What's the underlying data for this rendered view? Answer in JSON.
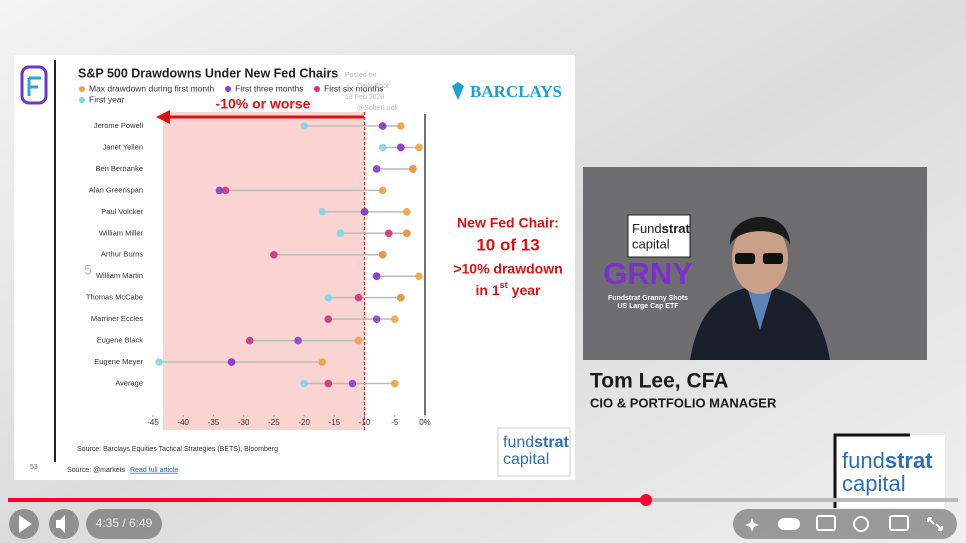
{
  "slide": {
    "source": "Source: Barclays Equities Tactical Strategies (BETS), Bloomberg",
    "footer_source": "Source: @markets",
    "footer_link": "Read full article",
    "page_number": "53",
    "brand": "BARCLAYS",
    "watermark": [
      "Posted on",
      "Daily Shot",
      "18 Feb 2020",
      "@SoberLook"
    ],
    "callout": "-10% or worse",
    "note": {
      "line1": "New Fed Chair:",
      "line2": "10 of 13",
      "line3": ">10% drawdown",
      "line4_a": "in 1",
      "line4_sup": "st",
      "line4_b": "year"
    },
    "logo": {
      "word1": "fund",
      "word2": "strat",
      "word3": "capital"
    }
  },
  "chart_data": {
    "type": "dot",
    "title": "S&P 500 Drawdowns Under New Fed Chairs",
    "categories": [
      "Jerome Powell",
      "Janet Yellen",
      "Ben Bernanke",
      "Alan Greenspan",
      "Paul Volcker",
      "William Miller",
      "Arthur Burns",
      "William Martin",
      "Thomas McCabe",
      "Marriner Eccles",
      "Eugene Black",
      "Eugene Meyer",
      "Average"
    ],
    "series": [
      {
        "name": "Max drawdown during first month",
        "color": "#f0a33a",
        "values": [
          -4,
          -1,
          -2,
          -7,
          -3,
          -3,
          -7,
          -1,
          -4,
          -5,
          -11,
          -17,
          -5
        ]
      },
      {
        "name": "First three months",
        "color": "#8b3fd0",
        "values": [
          -7,
          -4,
          -8,
          -34,
          -10,
          -3,
          -7,
          -8,
          -4,
          -8,
          -21,
          -32,
          -12
        ]
      },
      {
        "name": "First six months",
        "color": "#d8307c",
        "values": [
          -7,
          -4,
          -2,
          -33,
          -10,
          -6,
          -25,
          -8,
          -11,
          -16,
          -29,
          -32,
          -16
        ]
      },
      {
        "name": "First year",
        "color": "#7fd5ea",
        "values": [
          -20,
          -7,
          -8,
          -34,
          -17,
          -14,
          -25,
          -8,
          -16,
          -16,
          -29,
          -44,
          -20
        ]
      }
    ],
    "xlim": [
      -45,
      0
    ],
    "xticks": [
      -45,
      -40,
      -35,
      -30,
      -25,
      -20,
      -15,
      -10,
      -5,
      {
        "value": 0,
        "label": "0%"
      }
    ],
    "threshold": -10
  },
  "video": {
    "logo_word1": "Fund",
    "logo_word2": "strat",
    "logo_word3": "capital",
    "ticker": "GRNY",
    "fund_line1": "Fundstrat Granny Shots",
    "fund_line2": "US Large Cap ETF"
  },
  "presenter": {
    "name": "Tom Lee, CFA",
    "role": "CIO & PORTFOLIO MANAGER"
  },
  "corner_logo": {
    "word1": "fund",
    "word2": "strat",
    "word3": "capital"
  },
  "player": {
    "time": "4:35 / 6:49",
    "side_label": "5"
  }
}
